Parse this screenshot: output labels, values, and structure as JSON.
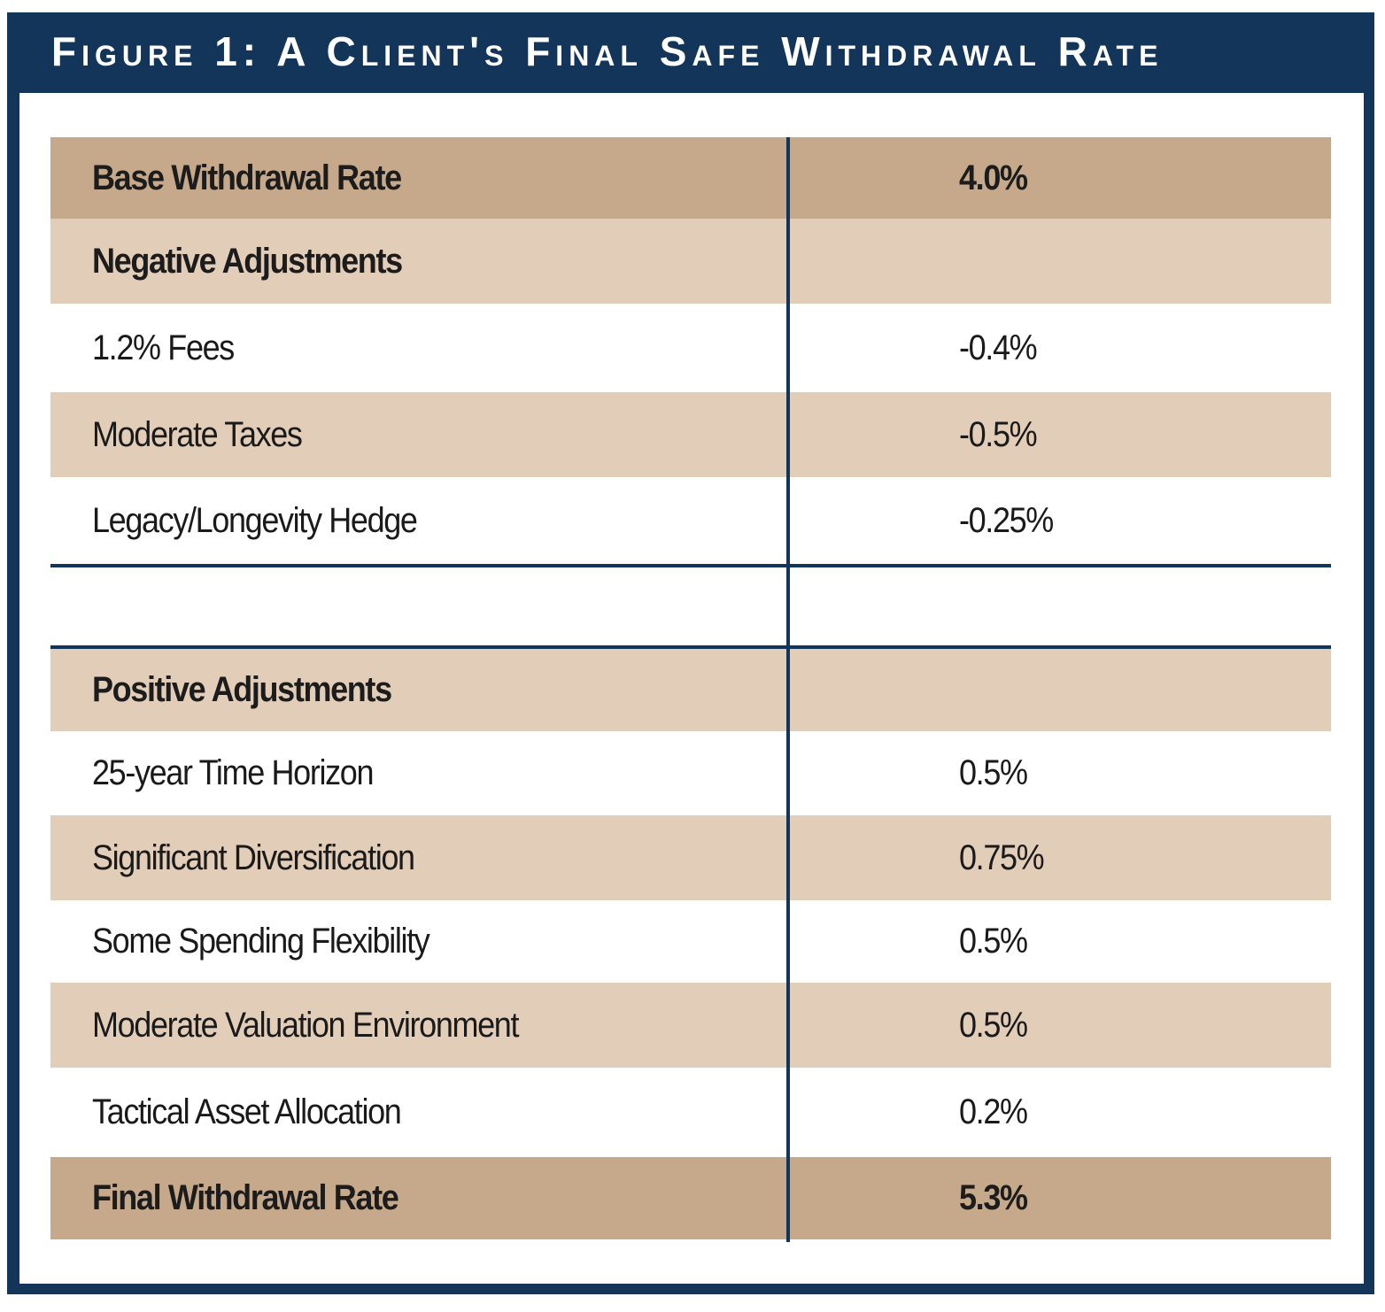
{
  "header": {
    "title": "Figure 1: A Client's Final Safe Withdrawal Rate"
  },
  "table": {
    "rows": [
      [
        "Base Withdrawal Rate",
        "4.0%"
      ],
      [
        "Negative Adjustments"
      ],
      [
        "1.2% Fees",
        "-0.4%"
      ],
      [
        "Moderate Taxes",
        "-0.5%"
      ],
      [
        "Legacy/Longevity Hedge",
        "-0.25%"
      ],
      [
        "Positive Adjustments"
      ],
      [
        "25-year Time Horizon",
        "0.5%"
      ],
      [
        "Significant Diversification",
        "0.75%"
      ],
      [
        "Some Spending Flexibility",
        "0.5%"
      ],
      [
        "Moderate Valuation Environment",
        "0.5%"
      ],
      [
        "Tactical Asset Allocation",
        "0.2%"
      ],
      [
        "Final Withdrawal Rate",
        "5.3%"
      ]
    ]
  }
}
